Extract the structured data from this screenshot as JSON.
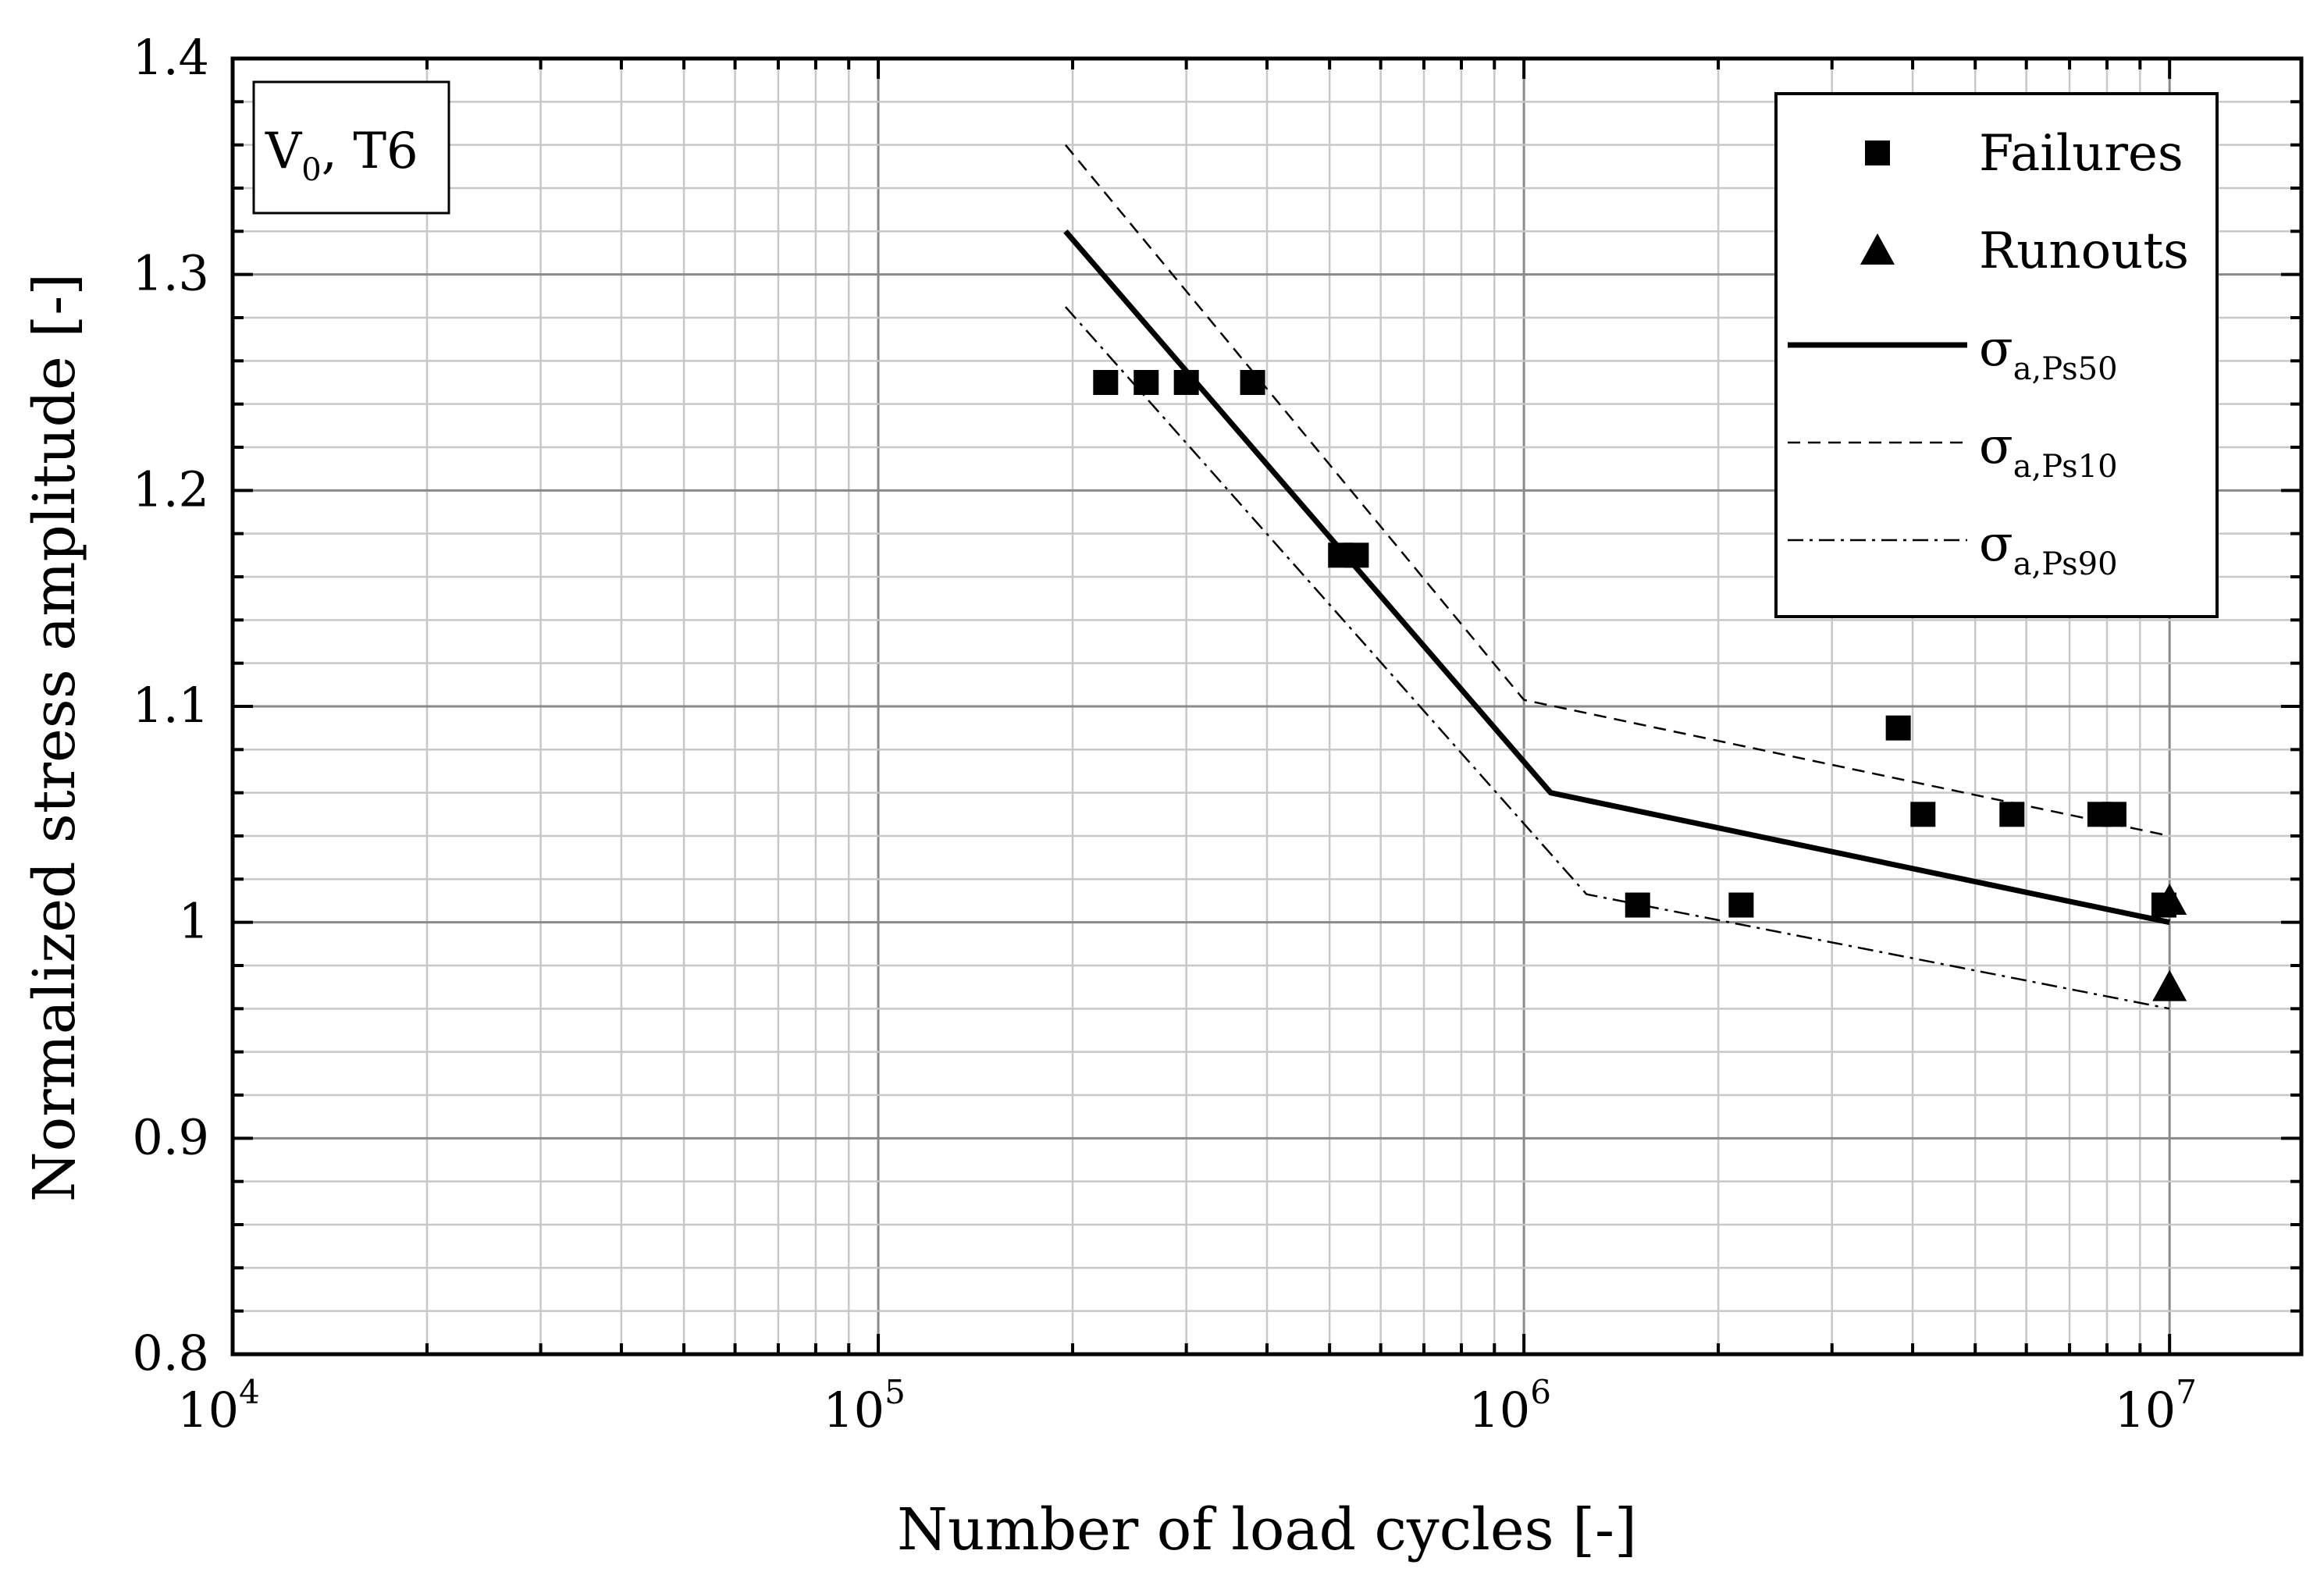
{
  "chart_data": {
    "type": "scatter",
    "xlabel": "Number of load cycles [-]",
    "ylabel": "Normalized stress amplitude [-]",
    "x_scale": "log",
    "xlim": [
      10000,
      16000000
    ],
    "ylim": [
      0.8,
      1.4
    ],
    "x_ticks": [
      {
        "value": 10000,
        "base": "10",
        "exp": "4"
      },
      {
        "value": 100000,
        "base": "10",
        "exp": "5"
      },
      {
        "value": 1000000,
        "base": "10",
        "exp": "6"
      },
      {
        "value": 10000000,
        "base": "10",
        "exp": "7"
      }
    ],
    "y_ticks": [
      {
        "value": 0.8,
        "label": "0.8"
      },
      {
        "value": 0.9,
        "label": "0.9"
      },
      {
        "value": 1.0,
        "label": "1"
      },
      {
        "value": 1.1,
        "label": "1.1"
      },
      {
        "value": 1.2,
        "label": "1.2"
      },
      {
        "value": 1.3,
        "label": "1.3"
      },
      {
        "value": 1.4,
        "label": "1.4"
      }
    ],
    "y_minor_step": 0.02,
    "grid": true,
    "annotation": {
      "main": "V",
      "sub": "0",
      "rest": ", T6"
    },
    "legend_position": "top-right",
    "series": [
      {
        "name": "Failures",
        "kind": "points",
        "marker": "square",
        "points": [
          [
            225000,
            1.25
          ],
          [
            260000,
            1.25
          ],
          [
            300000,
            1.25
          ],
          [
            380000,
            1.25
          ],
          [
            520000,
            1.17
          ],
          [
            550000,
            1.17
          ],
          [
            1500000,
            1.008
          ],
          [
            2170000,
            1.008
          ],
          [
            3800000,
            1.09
          ],
          [
            4150000,
            1.05
          ],
          [
            5700000,
            1.05
          ],
          [
            7800000,
            1.05
          ],
          [
            8200000,
            1.05
          ],
          [
            9800000,
            1.008
          ]
        ]
      },
      {
        "name": "Runouts",
        "kind": "points",
        "marker": "triangle",
        "points": [
          [
            10000000,
            1.01
          ],
          [
            10000000,
            0.97
          ]
        ]
      },
      {
        "name": "σ",
        "sub": "a,Ps50",
        "kind": "line",
        "dash": "solid",
        "points": [
          [
            195000,
            1.32
          ],
          [
            1100000,
            1.06
          ],
          [
            10000000,
            1.0
          ]
        ]
      },
      {
        "name": "σ",
        "sub": "a,Ps10",
        "kind": "line",
        "dash": "dash",
        "points": [
          [
            195000,
            1.36
          ],
          [
            1000000,
            1.103
          ],
          [
            10000000,
            1.04
          ]
        ]
      },
      {
        "name": "σ",
        "sub": "a,Ps90",
        "kind": "line",
        "dash": "dashdot",
        "points": [
          [
            195000,
            1.285
          ],
          [
            1250000,
            1.013
          ],
          [
            10000000,
            0.96
          ]
        ]
      }
    ]
  }
}
